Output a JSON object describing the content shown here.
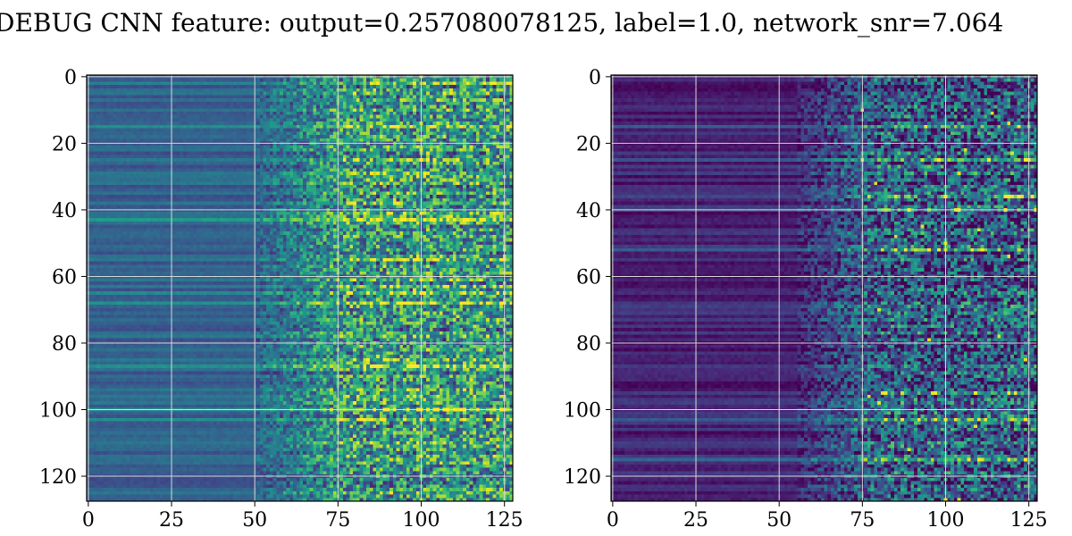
{
  "title": "DEBUG CNN feature: output=0.257080078125, label=1.0, network_snr=7.064",
  "colormap": [
    "#440154",
    "#482878",
    "#3e4989",
    "#31688e",
    "#26828e",
    "#1f9e89",
    "#35b779",
    "#6ece58",
    "#b5de2b",
    "#fde725"
  ],
  "grid_color": "#d9d9d9",
  "chart_data": [
    {
      "type": "heatmap",
      "panel": "left",
      "title": "",
      "xlabel": "",
      "ylabel": "",
      "rows": 128,
      "cols": 128,
      "xlim": [
        0,
        127
      ],
      "ylim": [
        127,
        0
      ],
      "y_inverted": true,
      "grid": true,
      "x_ticks": [
        0,
        25,
        50,
        75,
        100,
        125
      ],
      "y_ticks": [
        0,
        20,
        40,
        60,
        80,
        100,
        120
      ],
      "x_tick_labels": [
        "0",
        "25",
        "50",
        "75",
        "100",
        "125"
      ],
      "y_tick_labels": [
        "0",
        "20",
        "40",
        "60",
        "80",
        "100",
        "120"
      ],
      "value_range": [
        0,
        1
      ],
      "column_profile": {
        "flat_until": 50,
        "ramp_end": 75,
        "low_level": 0.32,
        "high_level": 0.55
      },
      "highlight_rows": [
        2,
        15,
        25,
        43,
        55,
        63,
        65,
        68,
        87,
        100,
        103
      ],
      "seed": 11
    },
    {
      "type": "heatmap",
      "panel": "right",
      "title": "",
      "xlabel": "",
      "ylabel": "",
      "rows": 128,
      "cols": 128,
      "xlim": [
        0,
        127
      ],
      "ylim": [
        127,
        0
      ],
      "y_inverted": true,
      "grid": true,
      "x_ticks": [
        0,
        25,
        50,
        75,
        100,
        125
      ],
      "y_ticks": [
        0,
        20,
        40,
        60,
        80,
        100,
        120
      ],
      "x_tick_labels": [
        "0",
        "25",
        "50",
        "75",
        "100",
        "125"
      ],
      "y_tick_labels": [
        "0",
        "20",
        "40",
        "60",
        "80",
        "100",
        "120"
      ],
      "value_range": [
        0,
        1
      ],
      "column_profile": {
        "flat_until": 55,
        "ramp_end": 75,
        "low_level": 0.1,
        "high_level": 0.3
      },
      "highlight_rows": [
        15,
        25,
        36,
        40,
        52,
        95,
        103,
        115
      ],
      "seed": 37
    }
  ]
}
